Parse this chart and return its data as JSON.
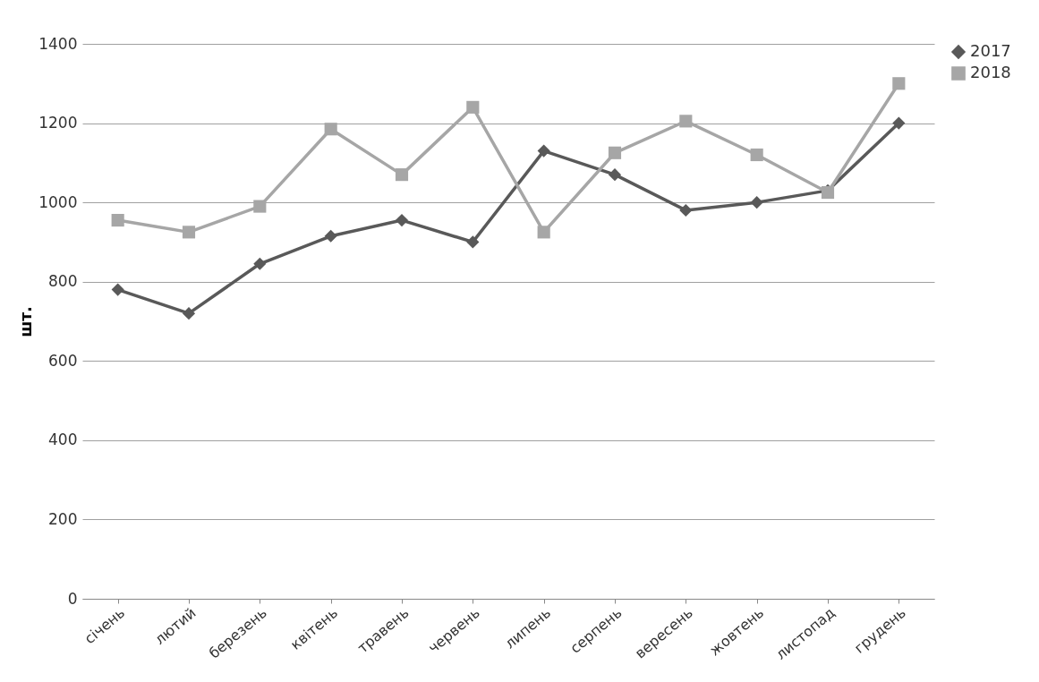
{
  "chart_data": {
    "type": "line",
    "ylabel": "шт.",
    "categories": [
      "січень",
      "лютий",
      "березень",
      "квітень",
      "травень",
      "червень",
      "липень",
      "серпень",
      "вересень",
      "жовтень",
      "листопад",
      "грудень"
    ],
    "series": [
      {
        "name": "2017",
        "color": "#595959",
        "marker": "diamond",
        "values": [
          780,
          720,
          845,
          915,
          955,
          900,
          1130,
          1070,
          980,
          1000,
          1030,
          1200
        ]
      },
      {
        "name": "2018",
        "color": "#a6a6a6",
        "marker": "square",
        "values": [
          955,
          925,
          990,
          1185,
          1070,
          1240,
          925,
          1125,
          1205,
          1120,
          1025,
          1300
        ]
      }
    ],
    "ylim": [
      0,
      1400
    ],
    "yticks": [
      0,
      200,
      400,
      600,
      800,
      1000,
      1200,
      1400
    ],
    "grid": "y",
    "legend": "right",
    "line_style": "solid"
  }
}
